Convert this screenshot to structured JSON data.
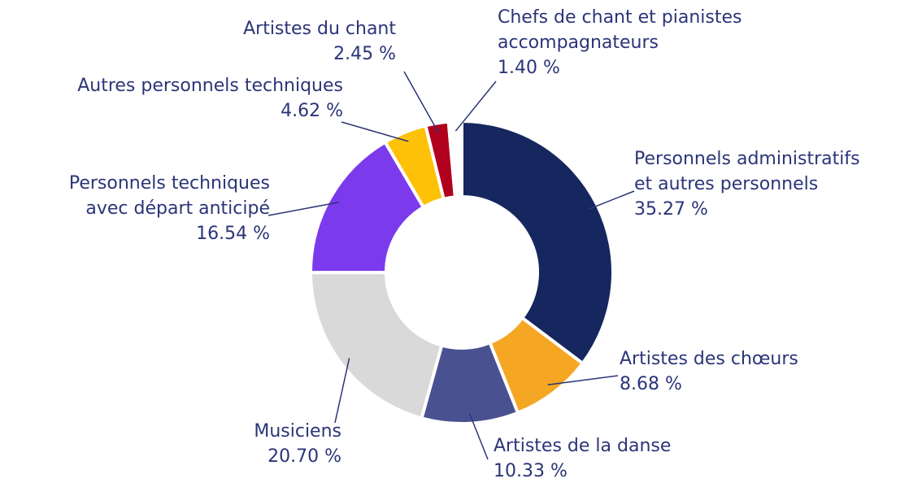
{
  "chart_data": {
    "type": "donut",
    "categories": [
      [
        "Personnels administratifs",
        "et autres personnels"
      ],
      [
        "Artistes des chœurs"
      ],
      [
        "Artistes de la danse"
      ],
      [
        "Musiciens"
      ],
      [
        "Personnels techniques",
        "avec départ anticipé"
      ],
      [
        "Autres personnels techniques"
      ],
      [
        "Artistes du chant"
      ],
      [
        "Chefs de chant et pianistes",
        "accompagnateurs"
      ]
    ],
    "values": [
      35.27,
      8.68,
      10.33,
      20.7,
      16.54,
      4.62,
      2.45,
      1.4
    ],
    "value_labels": [
      "35.27 %",
      "8.68 %",
      "10.33 %",
      "20.70 %",
      "16.54 %",
      "4.62 %",
      "2.45 %",
      "1.40 %"
    ],
    "colors": [
      "#16265e",
      "#f5a623",
      "#4a5190",
      "#d9d9d9",
      "#7c3aed",
      "#ffc107",
      "#b0001e",
      "#ffffff"
    ]
  }
}
